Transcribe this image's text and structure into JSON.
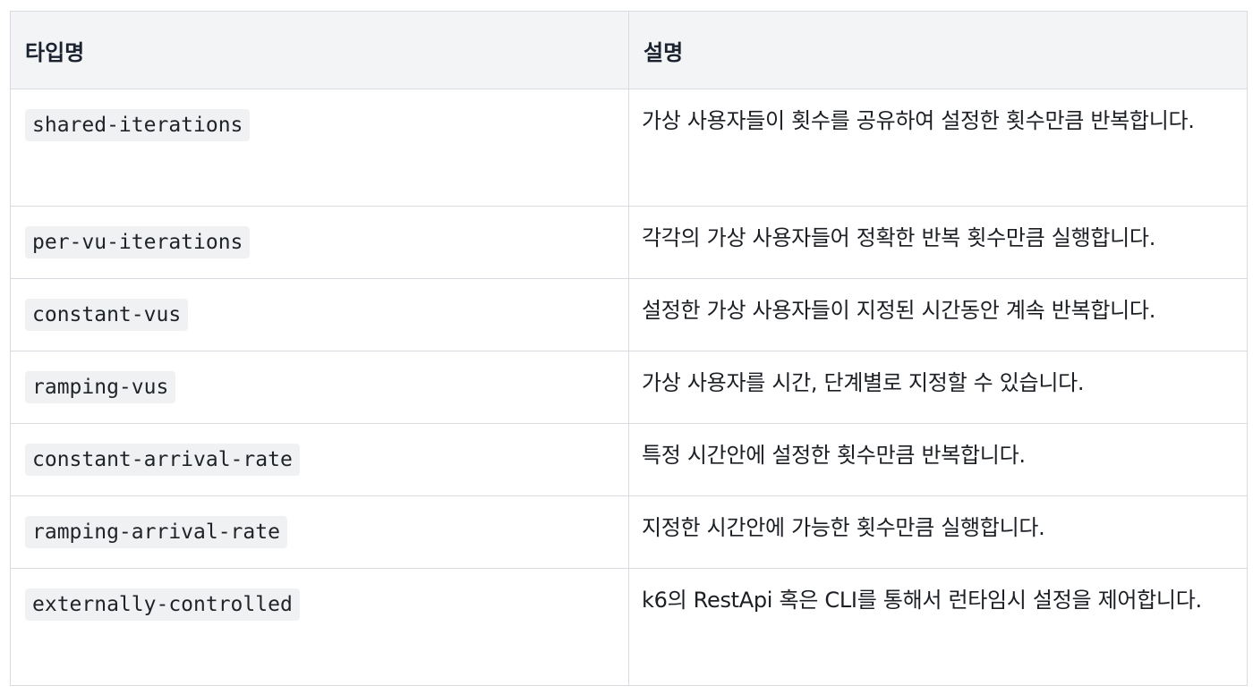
{
  "table": {
    "headers": [
      "타입명",
      "설명"
    ],
    "rows": [
      {
        "type": "shared-iterations",
        "description": "가상 사용자들이 횟수를 공유하여 설정한 횟수만큼 반복합니다."
      },
      {
        "type": "per-vu-iterations",
        "description": "각각의 가상 사용자들어 정확한 반복 횟수만큼 실행합니다."
      },
      {
        "type": "constant-vus",
        "description": "설정한 가상 사용자들이 지정된 시간동안 계속 반복합니다."
      },
      {
        "type": "ramping-vus",
        "description": "가상 사용자를 시간, 단계별로 지정할 수 있습니다."
      },
      {
        "type": "constant-arrival-rate",
        "description": "특정 시간안에 설정한 횟수만큼 반복합니다."
      },
      {
        "type": "ramping-arrival-rate",
        "description": "지정한 시간안에 가능한 횟수만큼 실행합니다."
      },
      {
        "type": "externally-controlled",
        "description": "k6의 RestApi 혹은 CLI를 통해서 런타임시 설정을 제어합니다."
      }
    ]
  }
}
